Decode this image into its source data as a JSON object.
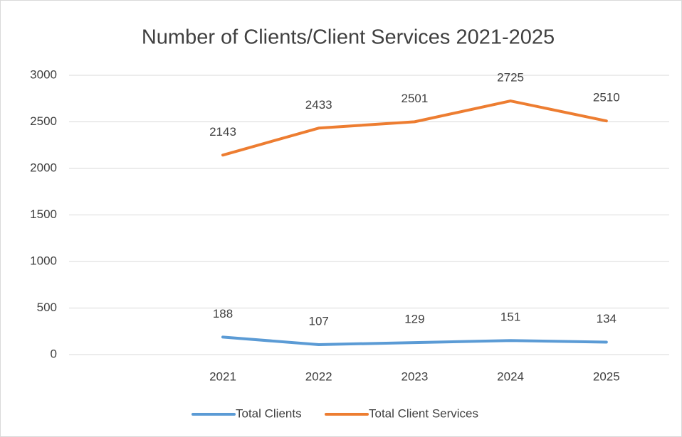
{
  "chart_data": {
    "type": "line",
    "title": "Number of Clients/Client Services 2021-2025",
    "categories": [
      null,
      "2021",
      "2022",
      "2023",
      "2024",
      "2025"
    ],
    "series": [
      {
        "name": "Total Clients",
        "color": "#5b9bd5",
        "values": [
          null,
          188,
          107,
          129,
          151,
          134
        ]
      },
      {
        "name": "Total Client Services",
        "color": "#ed7d31",
        "values": [
          null,
          2143,
          2433,
          2501,
          2725,
          2510
        ]
      }
    ],
    "ylim": [
      0,
      3000
    ],
    "yticks": [
      0,
      500,
      1000,
      1500,
      2000,
      2500,
      3000
    ],
    "grid": true,
    "legend": "bottom"
  }
}
